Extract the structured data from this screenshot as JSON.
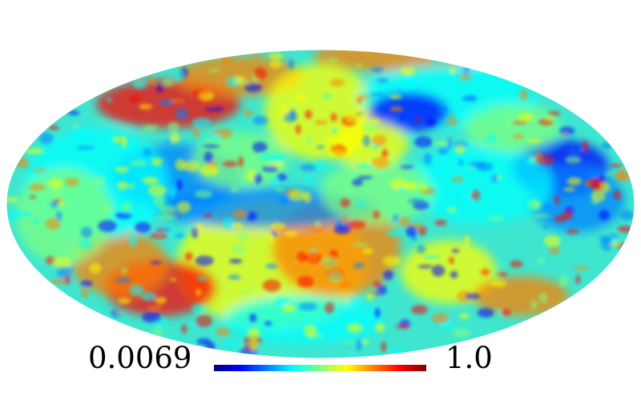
{
  "map": {
    "projection": "mollweide",
    "colormap": [
      "#00007f",
      "#0000ff",
      "#0080ff",
      "#00ffff",
      "#80ff80",
      "#ffff00",
      "#ff8000",
      "#ff0000",
      "#7f0000"
    ],
    "background": "#ffffff"
  },
  "colorbar": {
    "min_label": "0.0069",
    "max_label": "1.0"
  }
}
